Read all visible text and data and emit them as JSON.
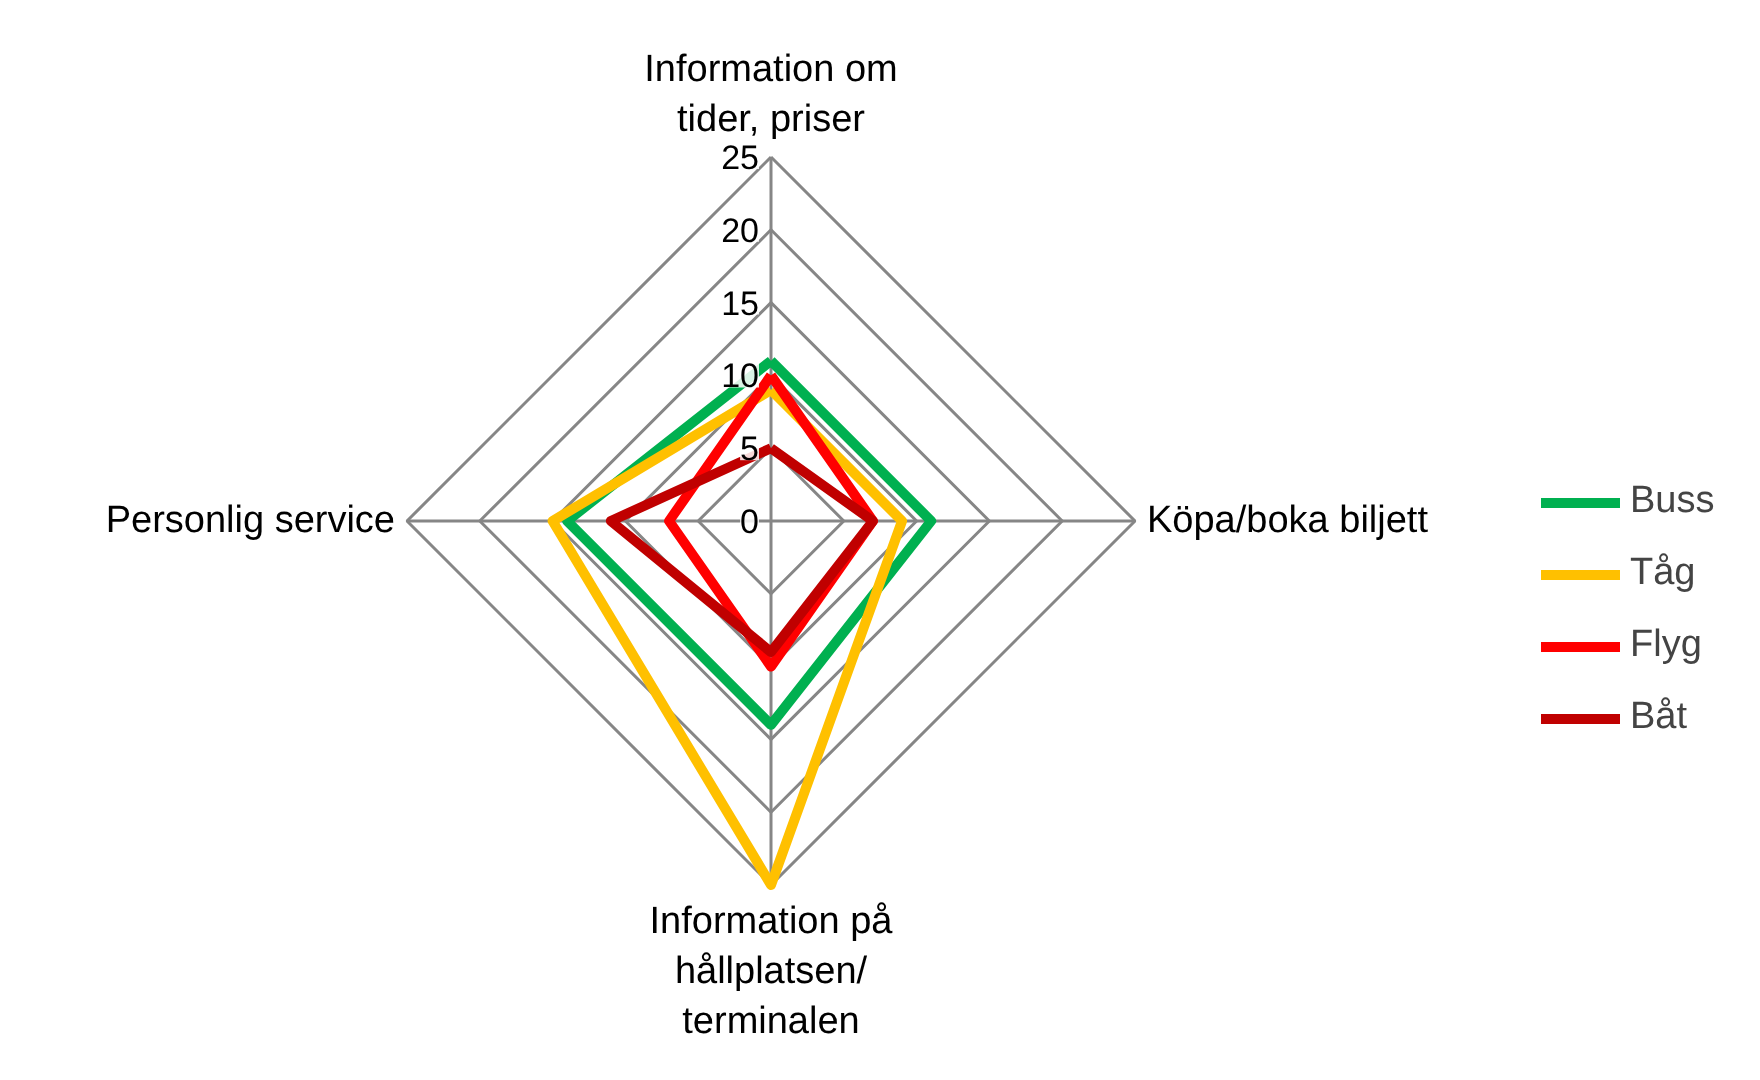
{
  "chart_data": {
    "type": "radar",
    "categories": [
      "Information om tider, priser",
      "Köpa/boka biljett",
      "Information på hållplatsen/terminalen",
      "Personlig service"
    ],
    "ylim": [
      0,
      25
    ],
    "yticks": [
      0,
      5,
      10,
      15,
      20,
      25
    ],
    "grid": true,
    "legend": "right",
    "series": [
      {
        "name": "Buss",
        "color": "#00b050",
        "values": [
          11,
          11,
          14,
          14
        ]
      },
      {
        "name": "Tåg",
        "color": "#ffc000",
        "values": [
          9,
          9,
          25,
          15
        ]
      },
      {
        "name": "Flyg",
        "color": "#ff0000",
        "values": [
          10,
          7,
          10,
          7
        ]
      },
      {
        "name": "Båt",
        "color": "#c00000",
        "values": [
          5,
          7,
          9,
          11
        ]
      }
    ]
  }
}
